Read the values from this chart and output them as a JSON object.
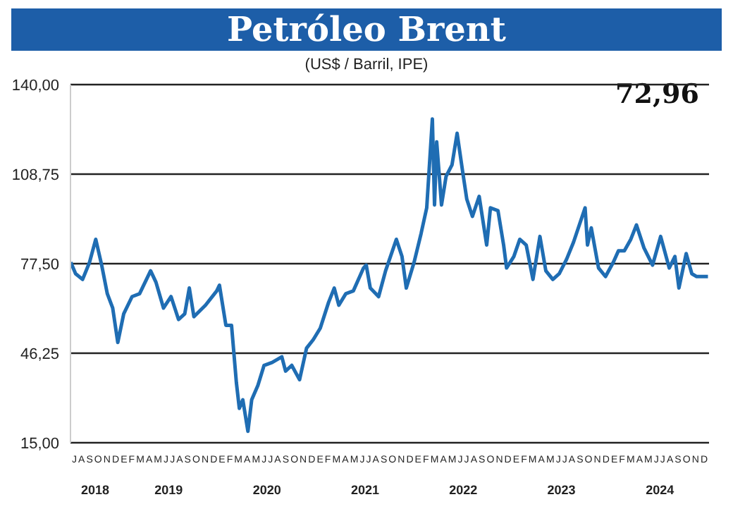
{
  "chart_data": {
    "type": "line",
    "title": "Petróleo Brent",
    "subtitle": "(US$ / Barril, IPE)",
    "annotations": [
      "72,96",
      "JASONDEFMAMJJASONDEFMAMJJASONDEFMAMJJASONDEFMAMJJASONDEFMAMJJASONDEFMAMJJASOND"
    ],
    "x": [
      "2018-07-02",
      "2018-07-20",
      "2018-08-15",
      "2018-09-10",
      "2018-10-03",
      "2018-10-25",
      "2018-11-15",
      "2018-12-05",
      "2018-12-24",
      "2019-01-15",
      "2019-02-15",
      "2019-03-15",
      "2019-04-25",
      "2019-05-15",
      "2019-06-12",
      "2019-07-10",
      "2019-08-07",
      "2019-08-30",
      "2019-09-16",
      "2019-10-03",
      "2019-11-15",
      "2019-12-27",
      "2020-01-06",
      "2020-01-30",
      "2020-02-20",
      "2020-03-09",
      "2020-03-20",
      "2020-04-02",
      "2020-04-21",
      "2020-05-05",
      "2020-05-28",
      "2020-06-20",
      "2020-07-20",
      "2020-08-25",
      "2020-09-08",
      "2020-10-01",
      "2020-10-30",
      "2020-11-25",
      "2020-12-20",
      "2021-01-15",
      "2021-02-15",
      "2021-03-08",
      "2021-03-25",
      "2021-04-20",
      "2021-05-18",
      "2021-06-25",
      "2021-07-05",
      "2021-07-20",
      "2021-08-20",
      "2021-09-15",
      "2021-10-25",
      "2021-11-15",
      "2021-12-01",
      "2021-12-30",
      "2022-01-25",
      "2022-02-15",
      "2022-03-08",
      "2022-03-16",
      "2022-03-24",
      "2022-04-11",
      "2022-04-28",
      "2022-05-20",
      "2022-06-08",
      "2022-06-28",
      "2022-07-14",
      "2022-08-04",
      "2022-08-29",
      "2022-09-26",
      "2022-10-10",
      "2022-11-07",
      "2022-11-28",
      "2022-12-09",
      "2023-01-05",
      "2023-01-27",
      "2023-02-20",
      "2023-03-17",
      "2023-04-12",
      "2023-05-04",
      "2023-05-30",
      "2023-06-23",
      "2023-07-20",
      "2023-08-15",
      "2023-09-27",
      "2023-10-06",
      "2023-10-20",
      "2023-11-16",
      "2023-12-12",
      "2024-01-10",
      "2024-01-29",
      "2024-02-20",
      "2024-03-15",
      "2024-04-05",
      "2024-05-03",
      "2024-06-04",
      "2024-07-04",
      "2024-08-05",
      "2024-08-26",
      "2024-09-10",
      "2024-10-07",
      "2024-10-28",
      "2024-11-15",
      "2024-12-06",
      "2024-12-27"
    ],
    "series": [
      {
        "color": "#1f6db3",
        "values": [
          78,
          74,
          72,
          78,
          86,
          77,
          67,
          62,
          50,
          60,
          66,
          67,
          75,
          71,
          62,
          66,
          58,
          60,
          69,
          59,
          63,
          68,
          70,
          56,
          56,
          36,
          27,
          30,
          19,
          30,
          35,
          42,
          43,
          45,
          40,
          42,
          37,
          48,
          51,
          55,
          64,
          69,
          63,
          67,
          68,
          76,
          77,
          69,
          66,
          75,
          86,
          80,
          69,
          78,
          88,
          97,
          128,
          98,
          120,
          98,
          108,
          112,
          123,
          110,
          100,
          94,
          101,
          84,
          97,
          96,
          84,
          76,
          80,
          86,
          84,
          72,
          87,
          75,
          72,
          74,
          79,
          85,
          97,
          84,
          90,
          76,
          73,
          78,
          82,
          82,
          86,
          91,
          83,
          77,
          87,
          76,
          80,
          69,
          81,
          74,
          73,
          73,
          73
        ]
      }
    ],
    "xlim": [
      "2018-07-01",
      "2024-12-31"
    ],
    "xticks": [
      {
        "value": "2018-10-01",
        "label": "2018"
      },
      {
        "value": "2019-07-01",
        "label": "2019"
      },
      {
        "value": "2020-07-01",
        "label": "2020"
      },
      {
        "value": "2021-07-01",
        "label": "2021"
      },
      {
        "value": "2022-07-01",
        "label": "2022"
      },
      {
        "value": "2023-07-01",
        "label": "2023"
      },
      {
        "value": "2024-07-01",
        "label": "2024"
      }
    ],
    "ylim": [
      15,
      140
    ],
    "yticks": [
      {
        "value": 15,
        "label": "15,00"
      },
      {
        "value": 46.25,
        "label": "46,25"
      },
      {
        "value": 77.5,
        "label": "77,50"
      },
      {
        "value": 108.75,
        "label": "108,75"
      },
      {
        "value": 140,
        "label": "140,00"
      }
    ],
    "grid": "y",
    "marker": "none",
    "line_style": "solid"
  }
}
